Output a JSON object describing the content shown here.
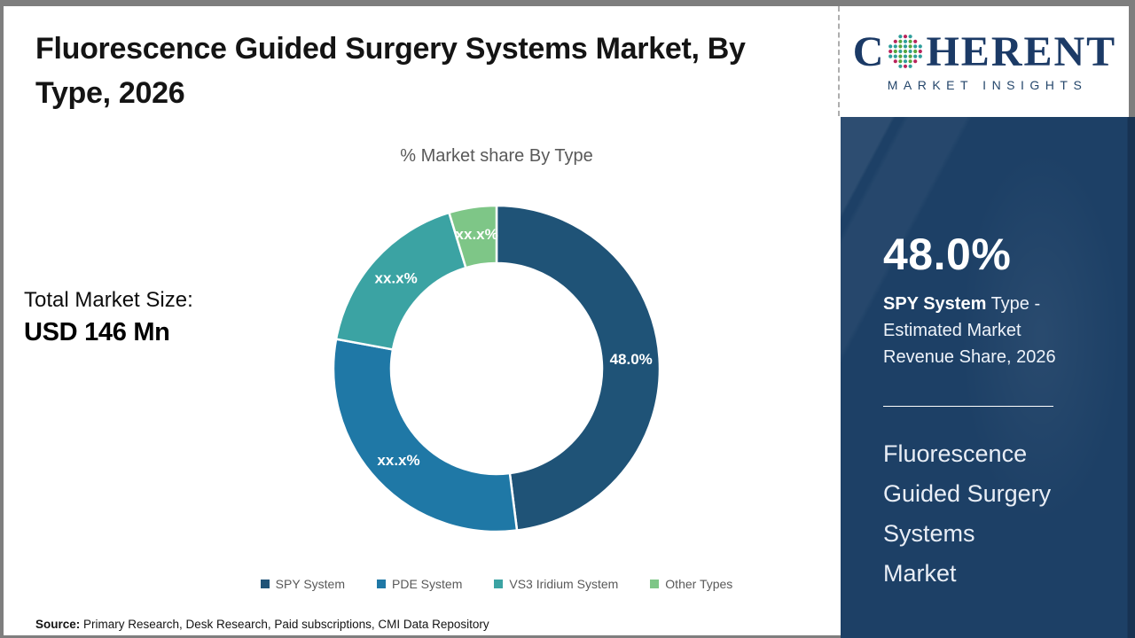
{
  "header": {
    "title_lines": [
      "Fluorescence Guided Surgery Systems Market, By",
      "Type, 2026"
    ]
  },
  "logo": {
    "brand_prefix": "C",
    "brand_suffix": "HERENT",
    "tagline": "MARKET INSIGHTS",
    "navy": "#1b3a66",
    "dot_colors": {
      "crimson": "#b9245c",
      "teal": "#2f9e9b",
      "green": "#57a73e"
    }
  },
  "stat": {
    "label": "Total Market Size:",
    "value": "USD 146 Mn"
  },
  "chart_data": {
    "type": "pie",
    "donut": true,
    "title": "% Market share By Type",
    "legend_position": "bottom",
    "segments": [
      {
        "label": "SPY System",
        "value": 48.0,
        "display_label": "48.0%",
        "color": "#1f5377"
      },
      {
        "label": "PDE System",
        "value": 29.9,
        "display_label": "xx.x%",
        "color": "#1f78a6"
      },
      {
        "label": "VS3 Iridium System",
        "value": 17.4,
        "display_label": "xx.x%",
        "color": "#3ba3a3"
      },
      {
        "label": "Other Types",
        "value": 4.7,
        "display_label": "xx.x%",
        "color": "#7ec687"
      }
    ]
  },
  "panel": {
    "background_color": "#1d4066",
    "headline_value": "48.0%",
    "desc_bold": "SPY System",
    "desc_line1_rest": " Type -",
    "desc_line2": "Estimated Market",
    "desc_line3": "Revenue Share, 2026",
    "market_name_lines": [
      "Fluorescence",
      "Guided Surgery",
      "Systems",
      "Market"
    ]
  },
  "source": {
    "label": "Source:",
    "text": " Primary Research, Desk Research, Paid subscriptions, CMI Data Repository"
  }
}
